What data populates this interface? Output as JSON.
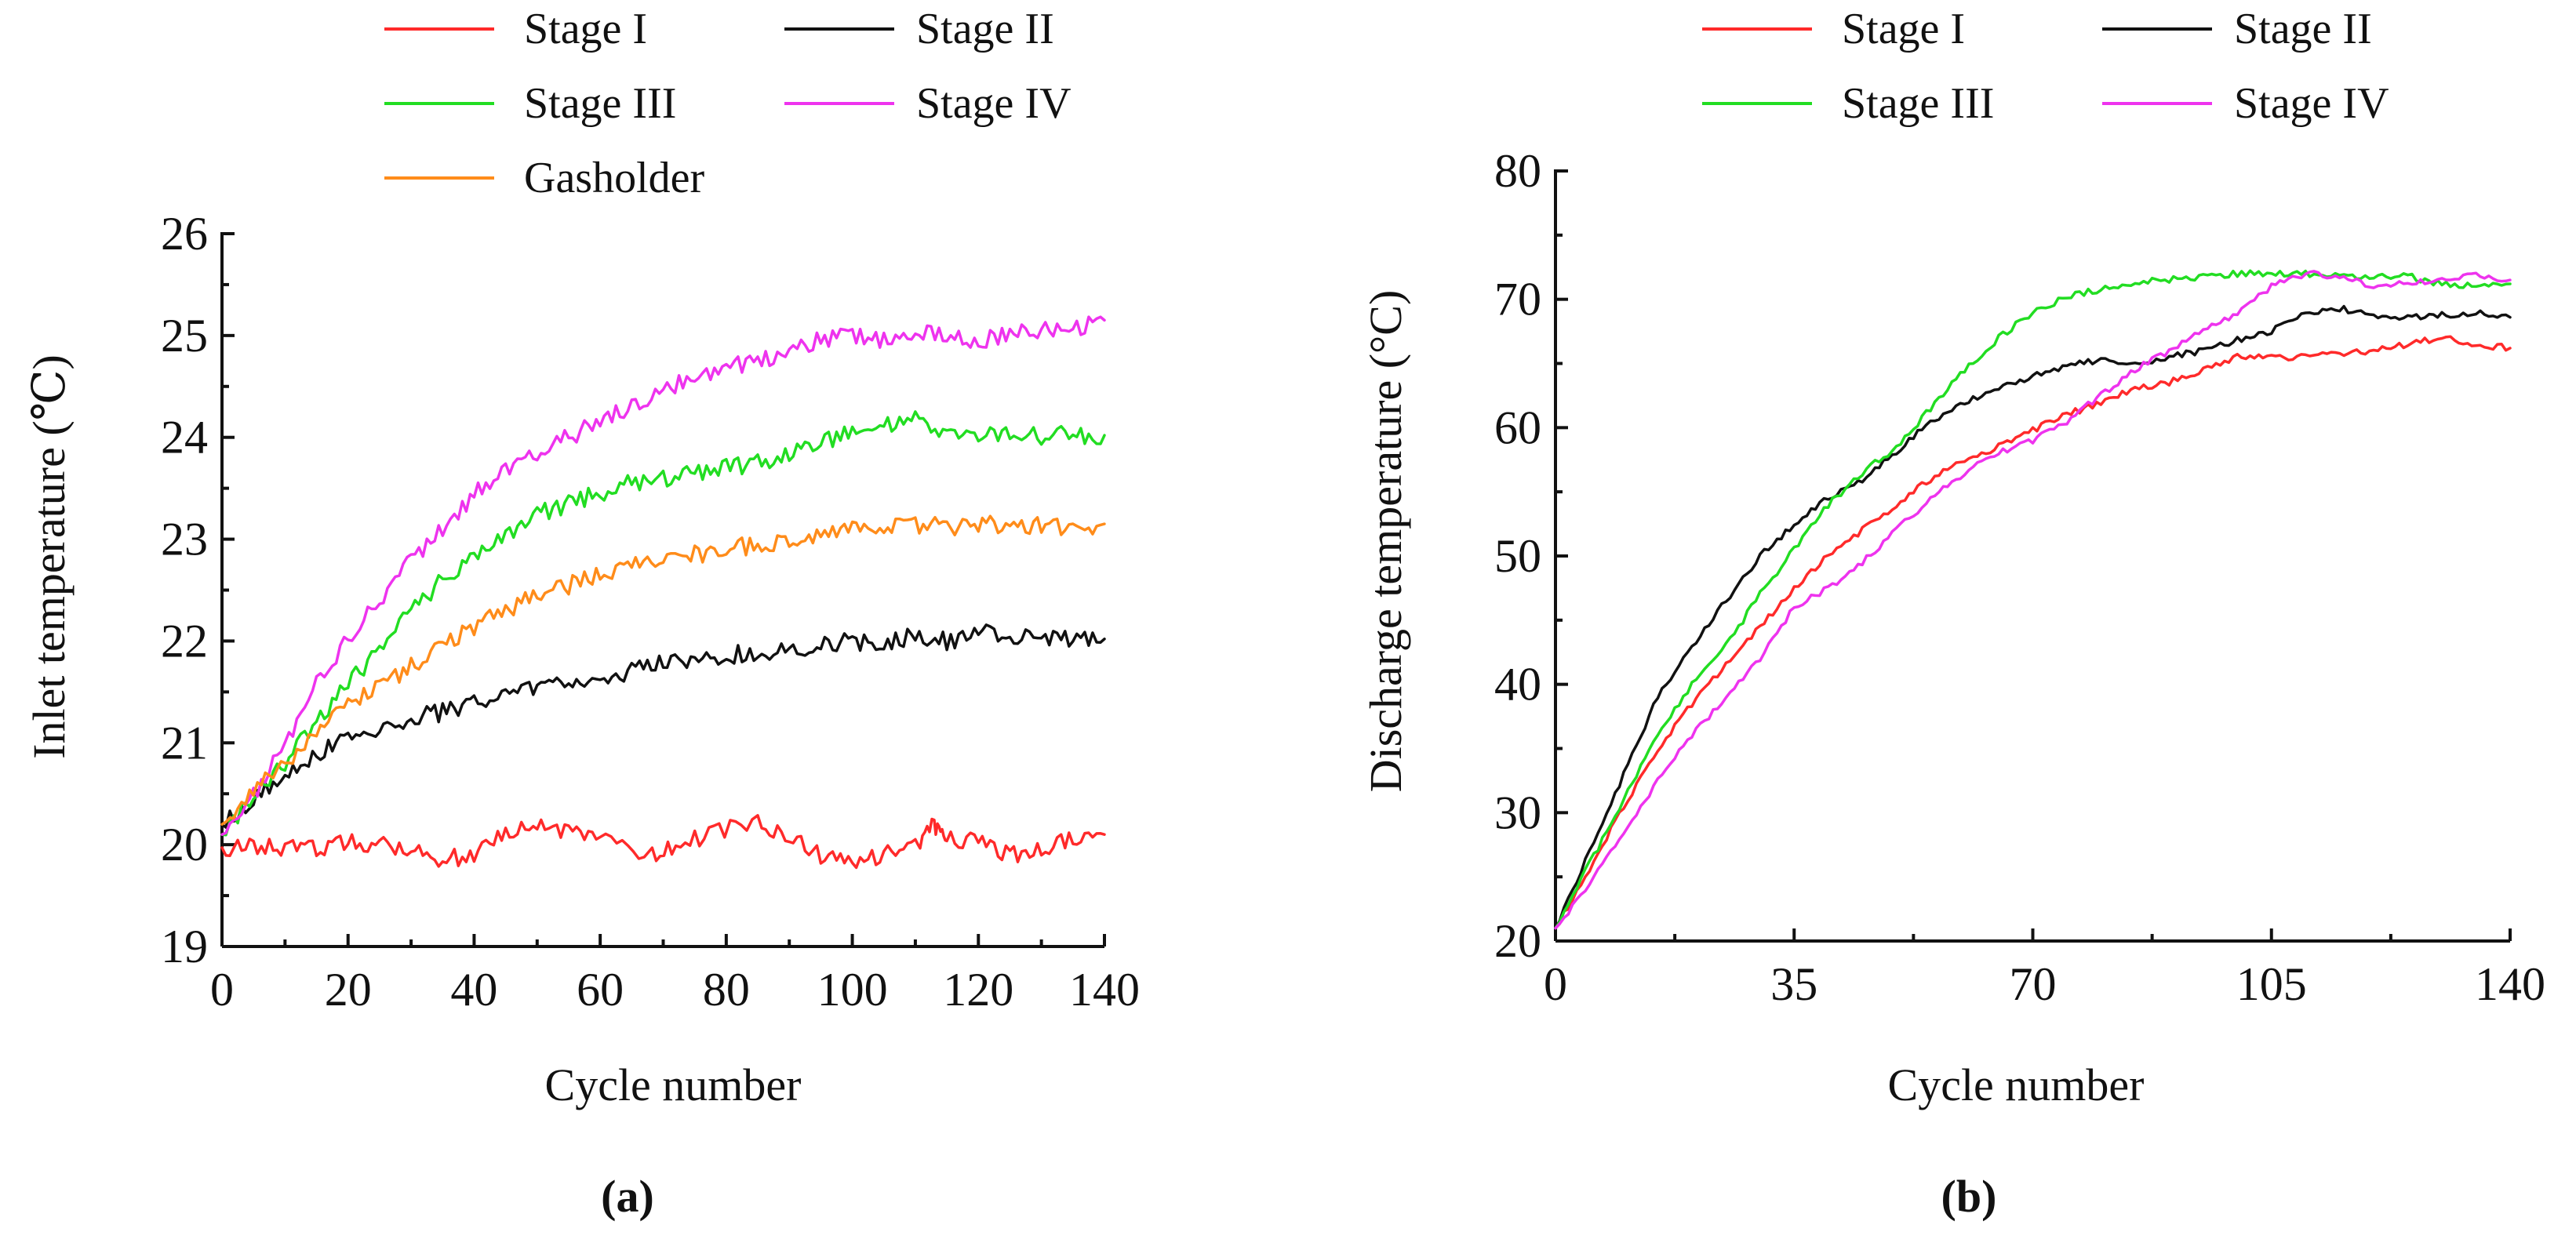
{
  "chart_data": [
    {
      "id": "a",
      "type": "line",
      "panel_label": "(a)",
      "title": "",
      "xlabel": "Cycle number",
      "ylabel": "Inlet temperature (℃)",
      "xlim": [
        0,
        140
      ],
      "ylim": [
        19,
        26
      ],
      "xticks": [
        0,
        20,
        40,
        60,
        80,
        100,
        120,
        140
      ],
      "xtick_labels": [
        "0",
        "20",
        "40",
        "60",
        "80",
        "100",
        "120",
        "140"
      ],
      "yticks": [
        19,
        20,
        21,
        22,
        23,
        24,
        25,
        26
      ],
      "ytick_labels": [
        "19",
        "20",
        "21",
        "22",
        "23",
        "24",
        "25",
        "26"
      ],
      "grid": false,
      "legend_position": "top",
      "series": [
        {
          "name": "Stage I",
          "color": "#ff2a2a",
          "x": [
            0,
            5,
            10,
            15,
            20,
            25,
            30,
            35,
            40,
            45,
            50,
            55,
            60,
            67,
            72,
            78,
            85,
            90,
            95,
            100,
            105,
            110,
            113,
            115,
            120,
            125,
            130,
            135,
            140
          ],
          "y": [
            19.97,
            19.97,
            19.97,
            19.97,
            20.03,
            20.0,
            19.98,
            19.85,
            19.9,
            20.15,
            20.18,
            20.12,
            20.1,
            19.88,
            20.0,
            20.1,
            20.25,
            20.05,
            19.9,
            19.85,
            19.9,
            20.0,
            20.2,
            20.05,
            20.02,
            19.9,
            19.95,
            20.05,
            20.1
          ]
        },
        {
          "name": "Stage II",
          "color": "#111111",
          "x": [
            0,
            5,
            10,
            15,
            20,
            25,
            30,
            35,
            40,
            45,
            50,
            55,
            60,
            65,
            70,
            75,
            80,
            85,
            90,
            95,
            100,
            105,
            110,
            115,
            120,
            125,
            130,
            135,
            140
          ],
          "y": [
            20.2,
            20.45,
            20.7,
            20.9,
            21.05,
            21.15,
            21.25,
            21.3,
            21.4,
            21.5,
            21.55,
            21.6,
            21.65,
            21.7,
            21.8,
            21.8,
            21.85,
            21.9,
            21.92,
            21.95,
            22.0,
            21.98,
            22.05,
            22.0,
            22.08,
            22.05,
            22.0,
            22.02,
            22.02
          ]
        },
        {
          "name": "Stage III",
          "color": "#22dd22",
          "x": [
            0,
            5,
            10,
            15,
            20,
            25,
            30,
            35,
            40,
            45,
            50,
            55,
            60,
            65,
            70,
            75,
            80,
            85,
            90,
            95,
            100,
            105,
            110,
            115,
            120,
            125,
            130,
            135,
            140
          ],
          "y": [
            20.1,
            20.45,
            20.8,
            21.2,
            21.6,
            21.9,
            22.3,
            22.6,
            22.85,
            23.05,
            23.25,
            23.35,
            23.45,
            23.55,
            23.6,
            23.65,
            23.7,
            23.75,
            23.85,
            23.95,
            24.05,
            24.1,
            24.2,
            24.05,
            24.0,
            24.05,
            24.0,
            24.03,
            24.02
          ]
        },
        {
          "name": "Stage IV",
          "color": "#ee33ee",
          "x": [
            0,
            5,
            10,
            15,
            20,
            25,
            30,
            35,
            40,
            45,
            50,
            55,
            60,
            65,
            70,
            75,
            80,
            85,
            90,
            95,
            100,
            105,
            110,
            115,
            120,
            125,
            130,
            135,
            140
          ],
          "y": [
            20.1,
            20.5,
            20.95,
            21.6,
            22.0,
            22.4,
            22.8,
            23.1,
            23.45,
            23.7,
            23.85,
            24.0,
            24.15,
            24.3,
            24.45,
            24.6,
            24.7,
            24.75,
            24.85,
            24.95,
            25.0,
            24.95,
            25.05,
            25.0,
            24.95,
            25.0,
            25.05,
            25.05,
            25.15
          ]
        },
        {
          "name": "Gasholder",
          "color": "#ff8c1a",
          "x": [
            0,
            5,
            10,
            15,
            20,
            25,
            30,
            35,
            40,
            45,
            50,
            55,
            60,
            65,
            70,
            75,
            80,
            85,
            90,
            95,
            100,
            105,
            110,
            115,
            120,
            125,
            130,
            135,
            140
          ],
          "y": [
            20.2,
            20.55,
            20.8,
            21.15,
            21.35,
            21.55,
            21.75,
            21.95,
            22.15,
            22.3,
            22.45,
            22.55,
            22.65,
            22.75,
            22.8,
            22.85,
            22.9,
            22.95,
            23.0,
            23.05,
            23.1,
            23.1,
            23.15,
            23.12,
            23.15,
            23.12,
            23.15,
            23.12,
            23.15
          ]
        }
      ]
    },
    {
      "id": "b",
      "type": "line",
      "panel_label": "(b)",
      "title": "",
      "xlabel": "Cycle number",
      "ylabel": "Discharge temperature (°C)",
      "xlim": [
        0,
        140
      ],
      "ylim": [
        20,
        80
      ],
      "xticks": [
        0,
        35,
        70,
        105,
        140
      ],
      "xtick_labels": [
        "0",
        "35",
        "70",
        "105",
        "140"
      ],
      "yticks": [
        20,
        30,
        40,
        50,
        60,
        70,
        80
      ],
      "ytick_labels": [
        "20",
        "30",
        "40",
        "50",
        "60",
        "70",
        "80"
      ],
      "grid": false,
      "legend_position": "top",
      "series": [
        {
          "name": "Stage I",
          "color": "#ff2a2a",
          "x": [
            0,
            5,
            10,
            15,
            20,
            25,
            30,
            35,
            40,
            45,
            50,
            55,
            60,
            65,
            70,
            75,
            80,
            85,
            90,
            95,
            100,
            105,
            110,
            115,
            120,
            125,
            130,
            135,
            140
          ],
          "y": [
            21,
            25.5,
            30.5,
            35,
            38.5,
            41.5,
            44.5,
            47.5,
            50,
            52,
            54,
            56,
            57.5,
            58.5,
            59.8,
            61,
            62,
            63,
            63.5,
            64.5,
            65.5,
            65.5,
            65.5,
            65.8,
            66,
            66.5,
            67,
            66.5,
            66.2
          ]
        },
        {
          "name": "Stage II",
          "color": "#111111",
          "x": [
            0,
            5,
            10,
            15,
            20,
            25,
            30,
            35,
            40,
            45,
            50,
            55,
            60,
            65,
            70,
            75,
            80,
            85,
            90,
            95,
            100,
            105,
            110,
            115,
            120,
            125,
            130,
            135,
            140
          ],
          "y": [
            21,
            27,
            33,
            39,
            43,
            46.5,
            50,
            52.5,
            54.5,
            56,
            58,
            60.5,
            62,
            63,
            64,
            64.8,
            65.3,
            65,
            65.5,
            66,
            66.8,
            67.5,
            69,
            69.3,
            68.8,
            68.5,
            68.8,
            68.9,
            68.6
          ]
        },
        {
          "name": "Stage III",
          "color": "#22dd22",
          "x": [
            0,
            5,
            10,
            15,
            20,
            25,
            30,
            35,
            40,
            45,
            50,
            55,
            60,
            65,
            70,
            75,
            80,
            85,
            90,
            95,
            100,
            105,
            110,
            115,
            120,
            125,
            130,
            135,
            140
          ],
          "y": [
            21,
            26,
            31,
            36,
            40,
            43,
            47,
            50.5,
            54,
            56.5,
            58.5,
            61.5,
            64.5,
            67,
            69,
            70.2,
            70.8,
            71.3,
            71.5,
            71.8,
            72,
            72,
            72,
            71.8,
            71.7,
            71.8,
            71.2,
            71,
            71.2
          ]
        },
        {
          "name": "Stage IV",
          "color": "#ee33ee",
          "x": [
            0,
            5,
            10,
            15,
            20,
            25,
            30,
            35,
            40,
            45,
            50,
            55,
            60,
            65,
            70,
            75,
            80,
            85,
            90,
            95,
            100,
            105,
            110,
            115,
            120,
            125,
            130,
            135,
            140
          ],
          "y": [
            21,
            24.5,
            28.5,
            32.5,
            36,
            39,
            42,
            46,
            47.5,
            49.5,
            52,
            54.5,
            56.5,
            58,
            59,
            60.5,
            62.5,
            64.5,
            66,
            67.5,
            69,
            71,
            72,
            71.8,
            71,
            71.3,
            71.5,
            72,
            71.5
          ]
        }
      ]
    }
  ]
}
